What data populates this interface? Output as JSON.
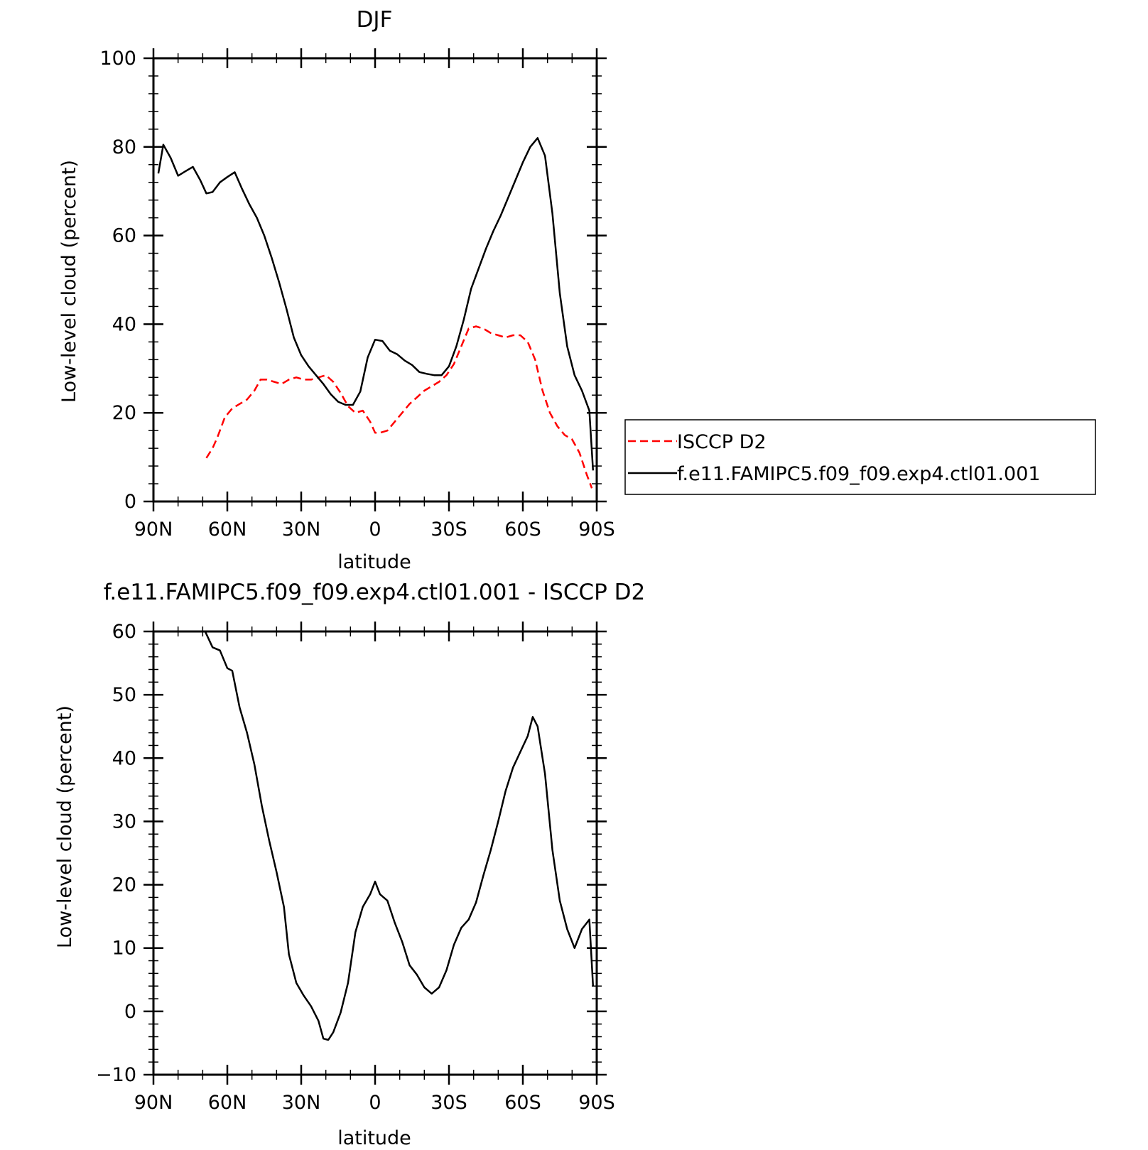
{
  "chart_data": [
    {
      "type": "line",
      "title": "DJF",
      "xlabel": "latitude",
      "ylabel": "Low-level cloud (percent)",
      "xlim": [
        90,
        -90
      ],
      "ylim": [
        0,
        100
      ],
      "xticks": [
        90,
        60,
        30,
        0,
        -30,
        -60,
        -90
      ],
      "xtick_labels": [
        "90N",
        "60N",
        "30N",
        "0",
        "30S",
        "60S",
        "90S"
      ],
      "yticks": [
        0,
        20,
        40,
        60,
        80,
        100
      ],
      "ytick_labels": [
        "0",
        "20",
        "40",
        "60",
        "80",
        "100"
      ],
      "legend_position": "right",
      "series": [
        {
          "name": "ISCCP D2",
          "color": "#ff0000",
          "dash": "dashed",
          "x": [
            68.5,
            66,
            64,
            61,
            58,
            55,
            52,
            49,
            46.5,
            44,
            41,
            38,
            35,
            32,
            29,
            26,
            23,
            20,
            17,
            14,
            11,
            8,
            5,
            2,
            0,
            -2,
            -5,
            -8,
            -11,
            -14,
            -17,
            -20,
            -23,
            -26,
            -29,
            -32,
            -35,
            -38,
            -41,
            -44,
            -47,
            -50,
            -53,
            -56,
            -59,
            -62,
            -65,
            -68,
            -71,
            -74,
            -77,
            -80,
            -83,
            -86,
            -88
          ],
          "y": [
            9.8,
            12,
            14.5,
            19,
            21,
            22,
            23,
            25,
            27.5,
            27.5,
            27,
            26.5,
            27.5,
            28,
            27.5,
            27.5,
            28,
            28.5,
            27,
            24.5,
            21.5,
            20,
            20.5,
            18,
            15.5,
            15.5,
            16,
            18,
            20,
            22,
            23.5,
            25,
            26,
            27,
            28.5,
            31,
            35,
            39,
            39.5,
            39,
            38,
            37.5,
            37,
            37.5,
            37.5,
            36,
            32,
            25,
            20,
            17,
            15,
            14,
            11,
            6,
            3
          ]
        },
        {
          "name": "f.e11.FAMIPC5.f09_f09.exp4.ctl01.001",
          "color": "#000000",
          "dash": "solid",
          "x": [
            88,
            86,
            83,
            80,
            77,
            74,
            71,
            68.5,
            66,
            63,
            60,
            57,
            54,
            51,
            48,
            45,
            42,
            39,
            36,
            33,
            30,
            27,
            24,
            21,
            18,
            15,
            12,
            9,
            6,
            3,
            0,
            -3,
            -6,
            -9,
            -12,
            -15,
            -18,
            -21,
            -24,
            -27,
            -30,
            -33,
            -36,
            -39,
            -42,
            -45,
            -48,
            -51,
            -54,
            -57,
            -60,
            -63,
            -66,
            -69,
            -72,
            -75,
            -78,
            -81,
            -84,
            -87,
            -88.5
          ],
          "y": [
            74,
            80.5,
            77.5,
            73.5,
            74.5,
            75.5,
            72.5,
            69.5,
            69.8,
            72,
            73.2,
            74.3,
            70.5,
            67,
            64,
            60,
            55,
            49.5,
            43.5,
            37,
            33,
            30.5,
            28.5,
            26.5,
            24.2,
            22.5,
            21.8,
            21.8,
            24.8,
            32.5,
            36.5,
            36.2,
            34,
            33.2,
            31.8,
            30.8,
            29.2,
            28.8,
            28.5,
            28.5,
            30.5,
            35,
            41,
            48,
            52.5,
            57,
            61,
            64.5,
            68.5,
            72.5,
            76.5,
            80,
            82,
            78,
            65,
            47,
            35,
            28.5,
            25,
            20.5,
            7
          ]
        }
      ]
    },
    {
      "type": "line",
      "title": "f.e11.FAMIPC5.f09_f09.exp4.ctl01.001 - ISCCP D2",
      "xlabel": "latitude",
      "ylabel": "Low-level cloud (percent)",
      "xlim": [
        90,
        -90
      ],
      "ylim": [
        -10,
        60
      ],
      "xticks": [
        90,
        60,
        30,
        0,
        -30,
        -60,
        -90
      ],
      "xtick_labels": [
        "90N",
        "60N",
        "30N",
        "0",
        "30S",
        "60S",
        "90S"
      ],
      "yticks": [
        -10,
        0,
        10,
        20,
        30,
        40,
        50,
        60
      ],
      "ytick_labels": [
        "−10",
        "0",
        "10",
        "20",
        "30",
        "40",
        "50",
        "60"
      ],
      "series": [
        {
          "color": "#000000",
          "dash": "solid",
          "x": [
            69,
            66,
            63,
            60,
            58,
            55,
            52,
            49,
            46,
            43,
            40,
            37,
            35,
            32,
            29,
            26,
            23,
            21,
            19,
            17,
            14,
            11,
            8,
            5,
            2,
            0,
            -2,
            -5,
            -8,
            -11,
            -14,
            -17,
            -20,
            -23,
            -26,
            -29,
            -32,
            -35,
            -38,
            -41,
            -44,
            -47,
            -50,
            -53,
            -56,
            -59,
            -62,
            -64,
            -66,
            -69,
            -72,
            -75,
            -78,
            -81,
            -84,
            -87,
            -88.5
          ],
          "y": [
            60,
            57.5,
            57,
            54.2,
            53.8,
            48,
            44,
            39,
            32.5,
            27,
            22,
            16.5,
            9,
            4.5,
            2.5,
            0.8,
            -1.5,
            -4.3,
            -4.5,
            -3.3,
            -0.2,
            4.5,
            12.5,
            16.5,
            18.5,
            20.5,
            18.5,
            17.5,
            14,
            11,
            7.3,
            5.8,
            3.8,
            2.8,
            3.8,
            6.5,
            10.5,
            13.2,
            14.5,
            17.2,
            21.5,
            25.5,
            30,
            34.8,
            38.5,
            41,
            43.5,
            46.5,
            45,
            37.5,
            25.5,
            17.5,
            13,
            10,
            13,
            14.5,
            4
          ]
        }
      ]
    }
  ]
}
